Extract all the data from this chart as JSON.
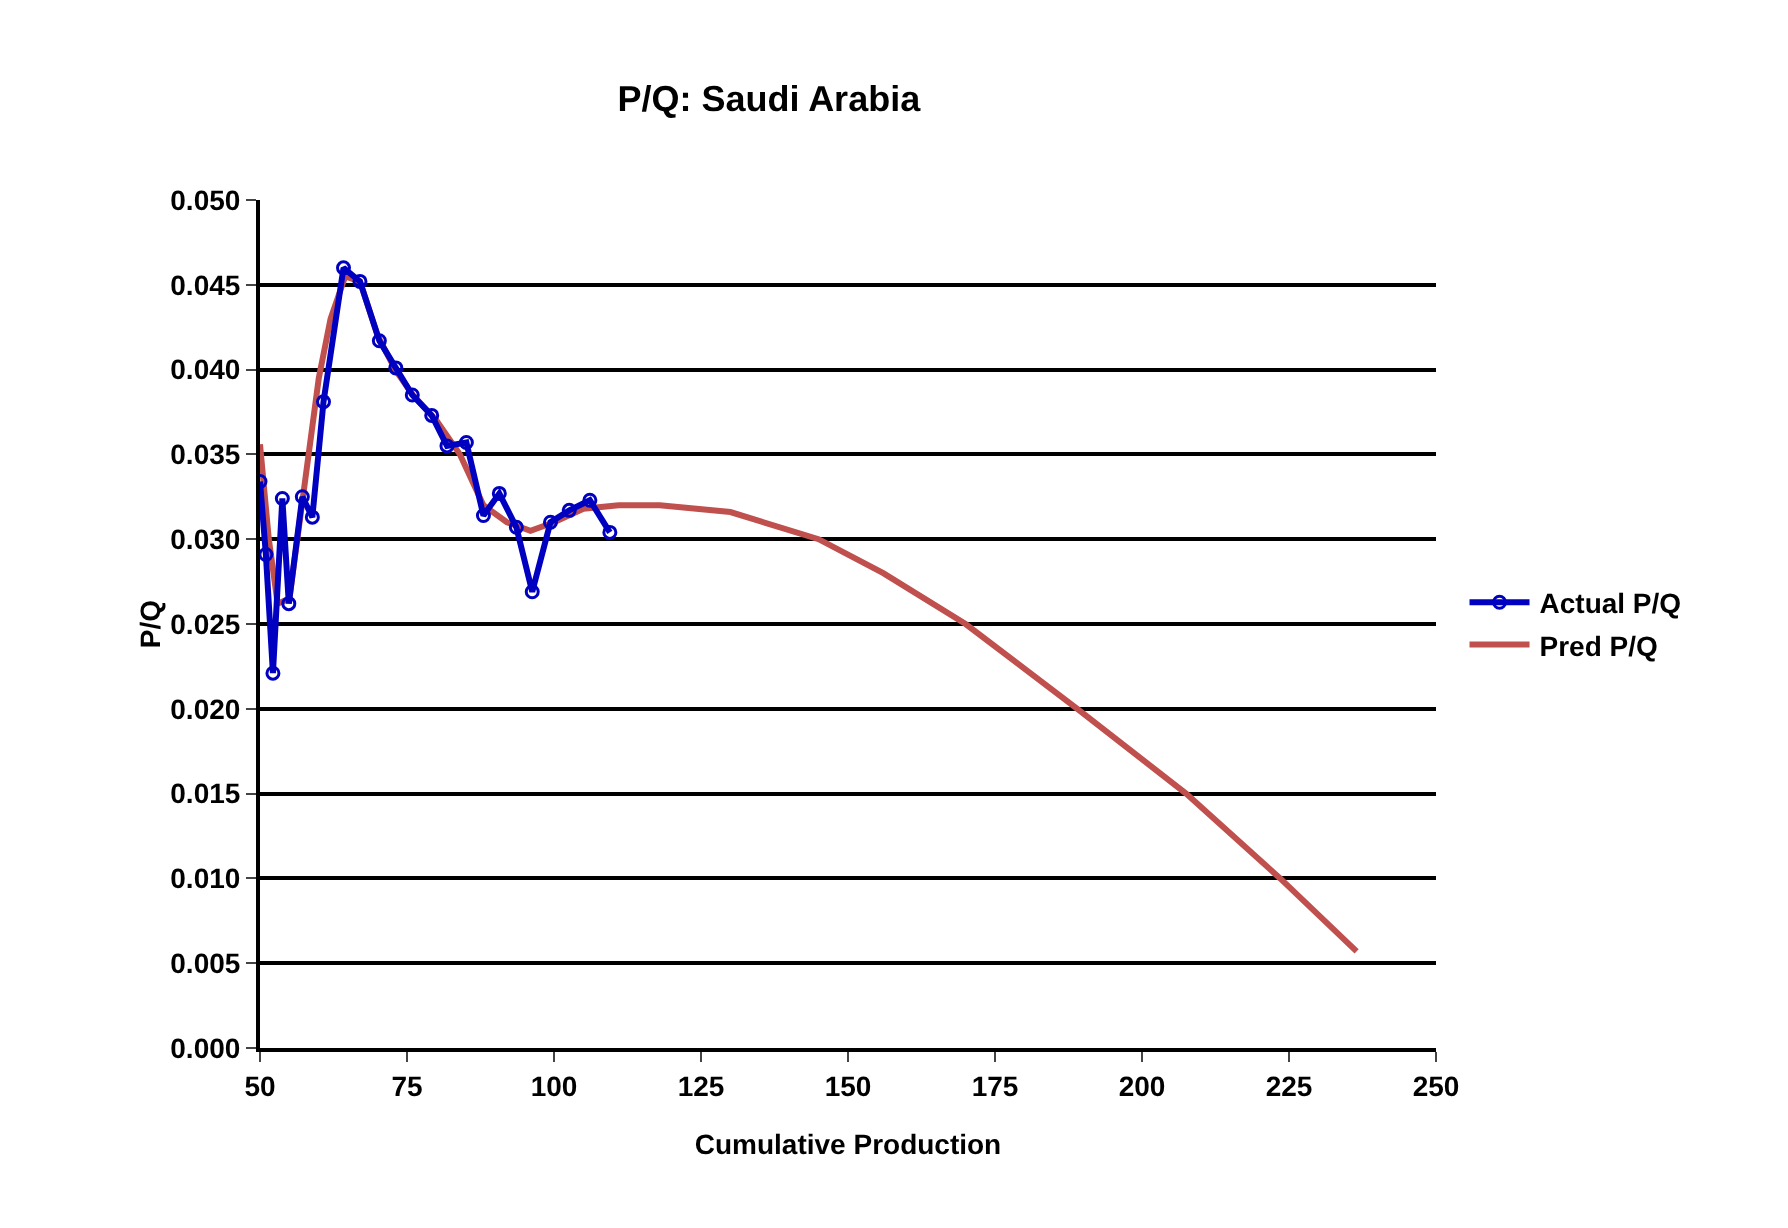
{
  "chart_data": {
    "type": "line",
    "title": "P/Q: Saudi Arabia",
    "xlabel": "Cumulative Production",
    "ylabel": "P/Q",
    "xlim": [
      50,
      250
    ],
    "xticks": [
      50,
      75,
      100,
      125,
      150,
      175,
      200,
      225,
      250
    ],
    "ylim": [
      0,
      0.05
    ],
    "yticks": [
      {
        "value": 0,
        "label": "0.000"
      },
      {
        "value": 0.005,
        "label": "0.005"
      },
      {
        "value": 0.01,
        "label": "0.010"
      },
      {
        "value": 0.015,
        "label": "0.015"
      },
      {
        "value": 0.02,
        "label": "0.020"
      },
      {
        "value": 0.025,
        "label": "0.025"
      },
      {
        "value": 0.03,
        "label": "0.030"
      },
      {
        "value": 0.035,
        "label": "0.035"
      },
      {
        "value": 0.04,
        "label": "0.040"
      },
      {
        "value": 0.045,
        "label": "0.045"
      },
      {
        "value": 0.05,
        "label": "0.050"
      }
    ],
    "grid": "y",
    "legend": "right",
    "series": [
      {
        "name": "Actual P/Q",
        "color": "#0000c0",
        "marker": "circle",
        "x": [
          50,
          51,
          52.2,
          53.8,
          54.9,
          57.2,
          58.9,
          60.8,
          64.2,
          67,
          70.3,
          73.1,
          75.9,
          79.2,
          81.8,
          85.1,
          88,
          90.7,
          93.6,
          96.3,
          99.4,
          102.6,
          106.1,
          109.5
        ],
        "values": [
          0.0334,
          0.0291,
          0.0221,
          0.0324,
          0.0262,
          0.0325,
          0.0313,
          0.0381,
          0.046,
          0.0452,
          0.0417,
          0.0401,
          0.0385,
          0.0373,
          0.0355,
          0.0357,
          0.0314,
          0.0327,
          0.0307,
          0.0269,
          0.031,
          0.0317,
          0.0323,
          0.0304
        ]
      },
      {
        "name": "Pred P/Q",
        "color": "#c0504d",
        "marker": "none",
        "x": [
          50,
          51.5,
          53,
          55,
          57.5,
          60,
          62,
          64.5,
          67,
          70,
          73,
          76,
          80,
          84,
          88,
          92,
          96,
          100,
          105,
          111,
          118,
          130,
          145,
          156,
          170,
          189,
          207.5,
          223.5,
          236.5
        ],
        "values": [
          0.0356,
          0.03,
          0.0262,
          0.0265,
          0.033,
          0.0395,
          0.043,
          0.0455,
          0.0452,
          0.042,
          0.04,
          0.0385,
          0.037,
          0.035,
          0.032,
          0.031,
          0.0305,
          0.031,
          0.0318,
          0.032,
          0.032,
          0.0316,
          0.03,
          0.028,
          0.025,
          0.02,
          0.015,
          0.01,
          0.0057
        ]
      }
    ]
  }
}
